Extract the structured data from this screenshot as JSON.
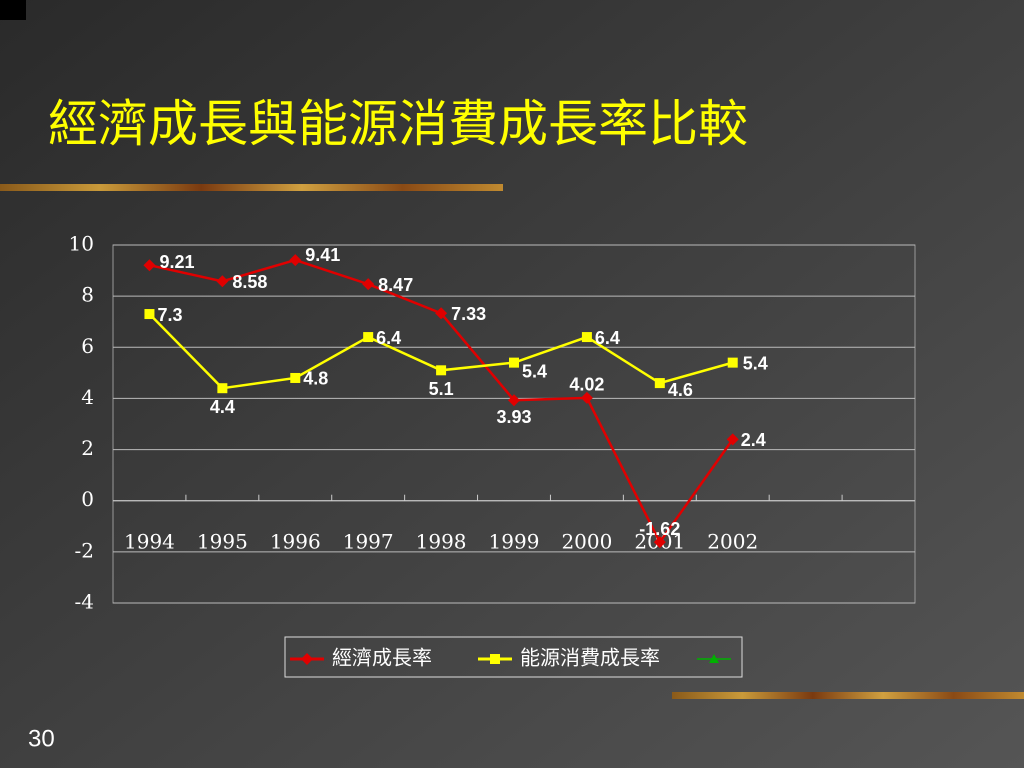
{
  "chart_data": {
    "type": "line",
    "title": "經濟成長與能源消費成長率比較",
    "page_number": "30",
    "categories": [
      "1994",
      "1995",
      "1996",
      "1997",
      "1998",
      "1999",
      "2000",
      "2001",
      "2002",
      null,
      null
    ],
    "series": [
      {
        "name": "經濟成長率",
        "color": "#e00000",
        "marker": "diamond",
        "values": [
          9.21,
          8.58,
          9.41,
          8.47,
          7.33,
          3.93,
          4.02,
          -1.62,
          2.4,
          null,
          null
        ]
      },
      {
        "name": "能源消費成長率",
        "color": "#ffff00",
        "marker": "square",
        "values": [
          7.3,
          4.4,
          4.8,
          6.4,
          5.1,
          5.4,
          6.4,
          4.6,
          5.4,
          null,
          null
        ]
      },
      {
        "color": "#00b000",
        "marker": "triangle",
        "values": [
          null,
          null,
          null,
          null,
          null,
          null,
          null,
          null,
          null,
          null,
          null
        ]
      }
    ],
    "ylim": [
      -4,
      10
    ],
    "yticks": [
      -4,
      -2,
      0,
      2,
      4,
      6,
      8,
      10
    ],
    "grid": true,
    "legend": "bottom"
  }
}
